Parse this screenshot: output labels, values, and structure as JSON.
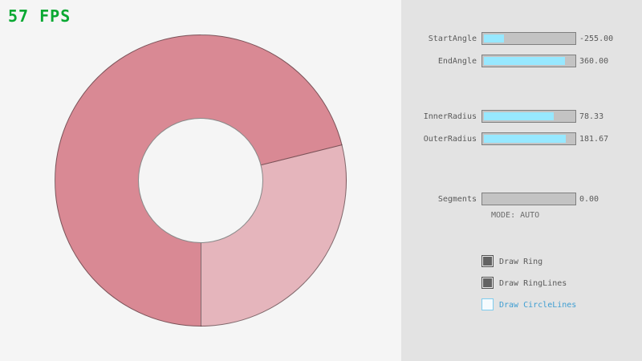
{
  "fps_label": "57 FPS",
  "colors": {
    "fps_green": "#09a832",
    "canvas_bg": "#f5f5f5",
    "panel_bg": "#e3e3e3",
    "slider_fill_cyan": "#97e8ff",
    "focus_blue": "#3f9ed2"
  },
  "ring": {
    "dark_color": "#d98994",
    "light_color": "#e5b5bc",
    "light_start_deg": 76,
    "light_end_deg": 180
  },
  "sliders": [
    {
      "label": "StartAngle",
      "value": "-255.00",
      "fill_pct": 22
    },
    {
      "label": "EndAngle",
      "value": "360.00",
      "fill_pct": 90
    },
    {
      "label": "InnerRadius",
      "value": "78.33",
      "fill_pct": 78
    },
    {
      "label": "OuterRadius",
      "value": "181.67",
      "fill_pct": 91
    },
    {
      "label": "Segments",
      "value": "0.00",
      "fill_pct": 0
    }
  ],
  "mode_label": "MODE: AUTO",
  "checkboxes": [
    {
      "label": "Draw Ring",
      "checked": true
    },
    {
      "label": "Draw RingLines",
      "checked": true
    },
    {
      "label": "Draw CircleLines",
      "checked": false
    }
  ]
}
